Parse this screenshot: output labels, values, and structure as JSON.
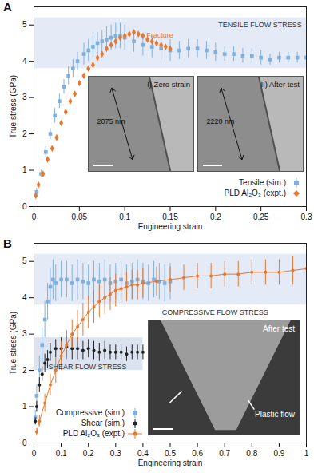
{
  "chart_data": [
    {
      "type": "scatter",
      "panel": "A",
      "x_label": "Engineering strain",
      "y_label": "True stress (GPa)",
      "xlim": [
        0,
        0.3
      ],
      "ylim": [
        0,
        5.5
      ],
      "xticks": [
        0,
        0.05,
        0.1,
        0.15,
        0.2,
        0.25,
        0.3
      ],
      "yticks": [
        0,
        1,
        2,
        3,
        4,
        5
      ],
      "legend": "bottom-right",
      "bands": [
        {
          "x": [
            0,
            0.3
          ],
          "y": [
            3.8,
            5.2
          ],
          "color": "#e4ebf7"
        }
      ],
      "annotations": [
        {
          "text": "TENSILE FLOW STRESS",
          "x": 0.295,
          "y": 5.0,
          "anchor": "end",
          "color": "#333333"
        },
        {
          "text": "+ Fracture",
          "x": 0.117,
          "y": 4.72,
          "anchor": "start",
          "color": "#e8772e"
        }
      ],
      "insets": [
        {
          "label": "I) Zero strain",
          "length_label": "2075 nm"
        },
        {
          "label": "II) After test",
          "length_label": "2220 nm"
        }
      ],
      "series": [
        {
          "name": "Tensile (sim.)",
          "color": "#7fb0dc",
          "marker": "square",
          "x": [
            0.003,
            0.008,
            0.013,
            0.018,
            0.023,
            0.028,
            0.033,
            0.038,
            0.043,
            0.048,
            0.055,
            0.06,
            0.065,
            0.07,
            0.075,
            0.08,
            0.085,
            0.09,
            0.095,
            0.1,
            0.11,
            0.12,
            0.13,
            0.14,
            0.15,
            0.16,
            0.17,
            0.18,
            0.19,
            0.2,
            0.21,
            0.22,
            0.23,
            0.24,
            0.25,
            0.26,
            0.27,
            0.28,
            0.29,
            0.3
          ],
          "values": [
            0.4,
            0.9,
            1.5,
            2.0,
            2.5,
            2.9,
            3.3,
            3.6,
            3.8,
            4.0,
            4.2,
            4.3,
            4.4,
            4.5,
            4.55,
            4.6,
            4.65,
            4.7,
            4.7,
            4.65,
            4.55,
            4.45,
            4.4,
            4.35,
            4.3,
            4.3,
            4.35,
            4.35,
            4.3,
            4.25,
            4.2,
            4.2,
            4.15,
            4.15,
            4.1,
            4.05,
            4.1,
            4.1,
            4.1,
            4.1
          ],
          "errors": [
            0.1,
            0.1,
            0.15,
            0.15,
            0.2,
            0.2,
            0.2,
            0.25,
            0.25,
            0.25,
            0.3,
            0.3,
            0.3,
            0.3,
            0.3,
            0.35,
            0.35,
            0.35,
            0.35,
            0.35,
            0.3,
            0.3,
            0.3,
            0.3,
            0.3,
            0.25,
            0.25,
            0.25,
            0.25,
            0.25,
            0.2,
            0.2,
            0.2,
            0.2,
            0.2,
            0.15,
            0.15,
            0.15,
            0.15,
            0.15
          ]
        },
        {
          "name": "PLD Al₂O₃ (expt.)",
          "color": "#e8772e",
          "marker": "diamond",
          "x": [
            0.002,
            0.005,
            0.01,
            0.015,
            0.02,
            0.025,
            0.03,
            0.035,
            0.04,
            0.045,
            0.05,
            0.055,
            0.06,
            0.065,
            0.07,
            0.075,
            0.08,
            0.085,
            0.09,
            0.095,
            0.1,
            0.105,
            0.11,
            0.115,
            0.12,
            0.125,
            0.13,
            0.135,
            0.14,
            0.145,
            0.15
          ],
          "values": [
            0.3,
            0.6,
            0.9,
            1.3,
            1.6,
            1.9,
            2.3,
            2.6,
            2.9,
            3.1,
            3.4,
            3.6,
            3.8,
            3.9,
            4.1,
            4.2,
            4.35,
            4.45,
            4.55,
            4.65,
            4.7,
            4.75,
            4.8,
            4.75,
            4.7,
            4.6,
            4.55,
            4.5,
            4.45,
            4.4,
            4.35
          ]
        }
      ]
    },
    {
      "type": "scatter",
      "panel": "B",
      "x_label": "Engineering strain",
      "y_label": "True stress (GPa)",
      "xlim": [
        0,
        1
      ],
      "ylim": [
        0,
        5.5
      ],
      "xticks": [
        0,
        0.1,
        0.2,
        0.3,
        0.4,
        0.5,
        0.6,
        0.7,
        0.8,
        0.9,
        1
      ],
      "yticks": [
        0,
        1,
        2,
        3,
        4,
        5
      ],
      "legend": "bottom-left",
      "bands": [
        {
          "x": [
            0,
            1
          ],
          "y": [
            3.8,
            5.2
          ],
          "color": "#e4ebf7"
        },
        {
          "x": [
            0,
            0.4
          ],
          "y": [
            2.0,
            2.9
          ],
          "color": "#dce3f0"
        }
      ],
      "annotations": [
        {
          "text": "COMPRESSIVE FLOW STRESS",
          "x": 0.86,
          "y": 3.6,
          "anchor": "end",
          "color": "#333333"
        },
        {
          "text": "SHEAR FLOW STRESS",
          "x": 0.34,
          "y": 2.1,
          "anchor": "end",
          "color": "#333333"
        }
      ],
      "insets": [
        {
          "label": "After test",
          "note": "Plastic flow"
        }
      ],
      "series": [
        {
          "name": "Compressive (sim.)",
          "color": "#7fb0dc",
          "marker": "square",
          "x": [
            0.005,
            0.01,
            0.02,
            0.03,
            0.04,
            0.05,
            0.06,
            0.07,
            0.08,
            0.1,
            0.12,
            0.14,
            0.16,
            0.18,
            0.2,
            0.22,
            0.24,
            0.26,
            0.28,
            0.3,
            0.32,
            0.34,
            0.36,
            0.38,
            0.4,
            0.42,
            0.44,
            0.46,
            0.48,
            0.5
          ],
          "values": [
            0.7,
            1.3,
            2.0,
            2.7,
            3.4,
            3.9,
            4.3,
            4.5,
            4.4,
            4.5,
            4.5,
            4.4,
            4.5,
            4.45,
            4.4,
            4.5,
            4.45,
            4.5,
            4.4,
            4.45,
            4.5,
            4.4,
            4.45,
            4.5,
            4.45,
            4.4,
            4.5,
            4.45,
            4.4,
            4.45
          ],
          "errors": [
            0.2,
            0.3,
            0.4,
            0.5,
            0.5,
            0.5,
            0.5,
            0.55,
            0.5,
            0.5,
            0.5,
            0.5,
            0.55,
            0.5,
            0.5,
            0.5,
            0.5,
            0.55,
            0.5,
            0.5,
            0.5,
            0.5,
            0.5,
            0.55,
            0.5,
            0.5,
            0.5,
            0.5,
            0.5,
            0.5
          ]
        },
        {
          "name": "Shear (sim.)",
          "color": "#222222",
          "marker": "circle",
          "x": [
            0.005,
            0.01,
            0.02,
            0.03,
            0.04,
            0.05,
            0.06,
            0.08,
            0.1,
            0.12,
            0.14,
            0.16,
            0.18,
            0.2,
            0.22,
            0.24,
            0.26,
            0.28,
            0.3,
            0.32,
            0.34,
            0.36,
            0.38,
            0.4
          ],
          "values": [
            0.6,
            1.0,
            1.6,
            1.9,
            2.2,
            2.3,
            2.5,
            2.6,
            2.6,
            2.65,
            2.6,
            2.6,
            2.55,
            2.6,
            2.55,
            2.5,
            2.55,
            2.5,
            2.5,
            2.5,
            2.45,
            2.5,
            2.5,
            2.5
          ],
          "errors": [
            0.1,
            0.15,
            0.2,
            0.2,
            0.25,
            0.25,
            0.25,
            0.25,
            0.3,
            0.3,
            0.3,
            0.3,
            0.25,
            0.25,
            0.25,
            0.25,
            0.25,
            0.2,
            0.2,
            0.2,
            0.2,
            0.2,
            0.2,
            0.2
          ]
        },
        {
          "name": "PLD Al₂O₃ (expt.)",
          "color": "#e8772e",
          "marker": "circle",
          "line_style": "solid",
          "x": [
            0.01,
            0.02,
            0.04,
            0.06,
            0.08,
            0.1,
            0.12,
            0.14,
            0.16,
            0.18,
            0.2,
            0.22,
            0.24,
            0.26,
            0.28,
            0.3,
            0.32,
            0.34,
            0.36,
            0.38,
            0.4,
            0.45,
            0.5,
            0.55,
            0.6,
            0.65,
            0.7,
            0.75,
            0.8,
            0.85,
            0.9,
            0.95,
            1.0
          ],
          "values": [
            0.3,
            0.6,
            1.1,
            1.6,
            2.0,
            2.4,
            2.7,
            3.0,
            3.2,
            3.4,
            3.6,
            3.75,
            3.9,
            4.0,
            4.1,
            4.2,
            4.25,
            4.3,
            4.35,
            4.35,
            4.4,
            4.45,
            4.5,
            4.55,
            4.6,
            4.6,
            4.65,
            4.65,
            4.7,
            4.7,
            4.7,
            4.75,
            4.8
          ],
          "errors": [
            0.1,
            0.15,
            0.25,
            0.3,
            0.35,
            0.4,
            0.4,
            0.4,
            0.45,
            0.45,
            0.45,
            0.45,
            0.45,
            0.45,
            0.45,
            0.45,
            0.4,
            0.4,
            0.4,
            0.4,
            0.4,
            0.4,
            0.35,
            0.35,
            0.35,
            0.35,
            0.35,
            0.35,
            0.35,
            0.35,
            0.35,
            0.4,
            0.4
          ]
        }
      ]
    }
  ]
}
